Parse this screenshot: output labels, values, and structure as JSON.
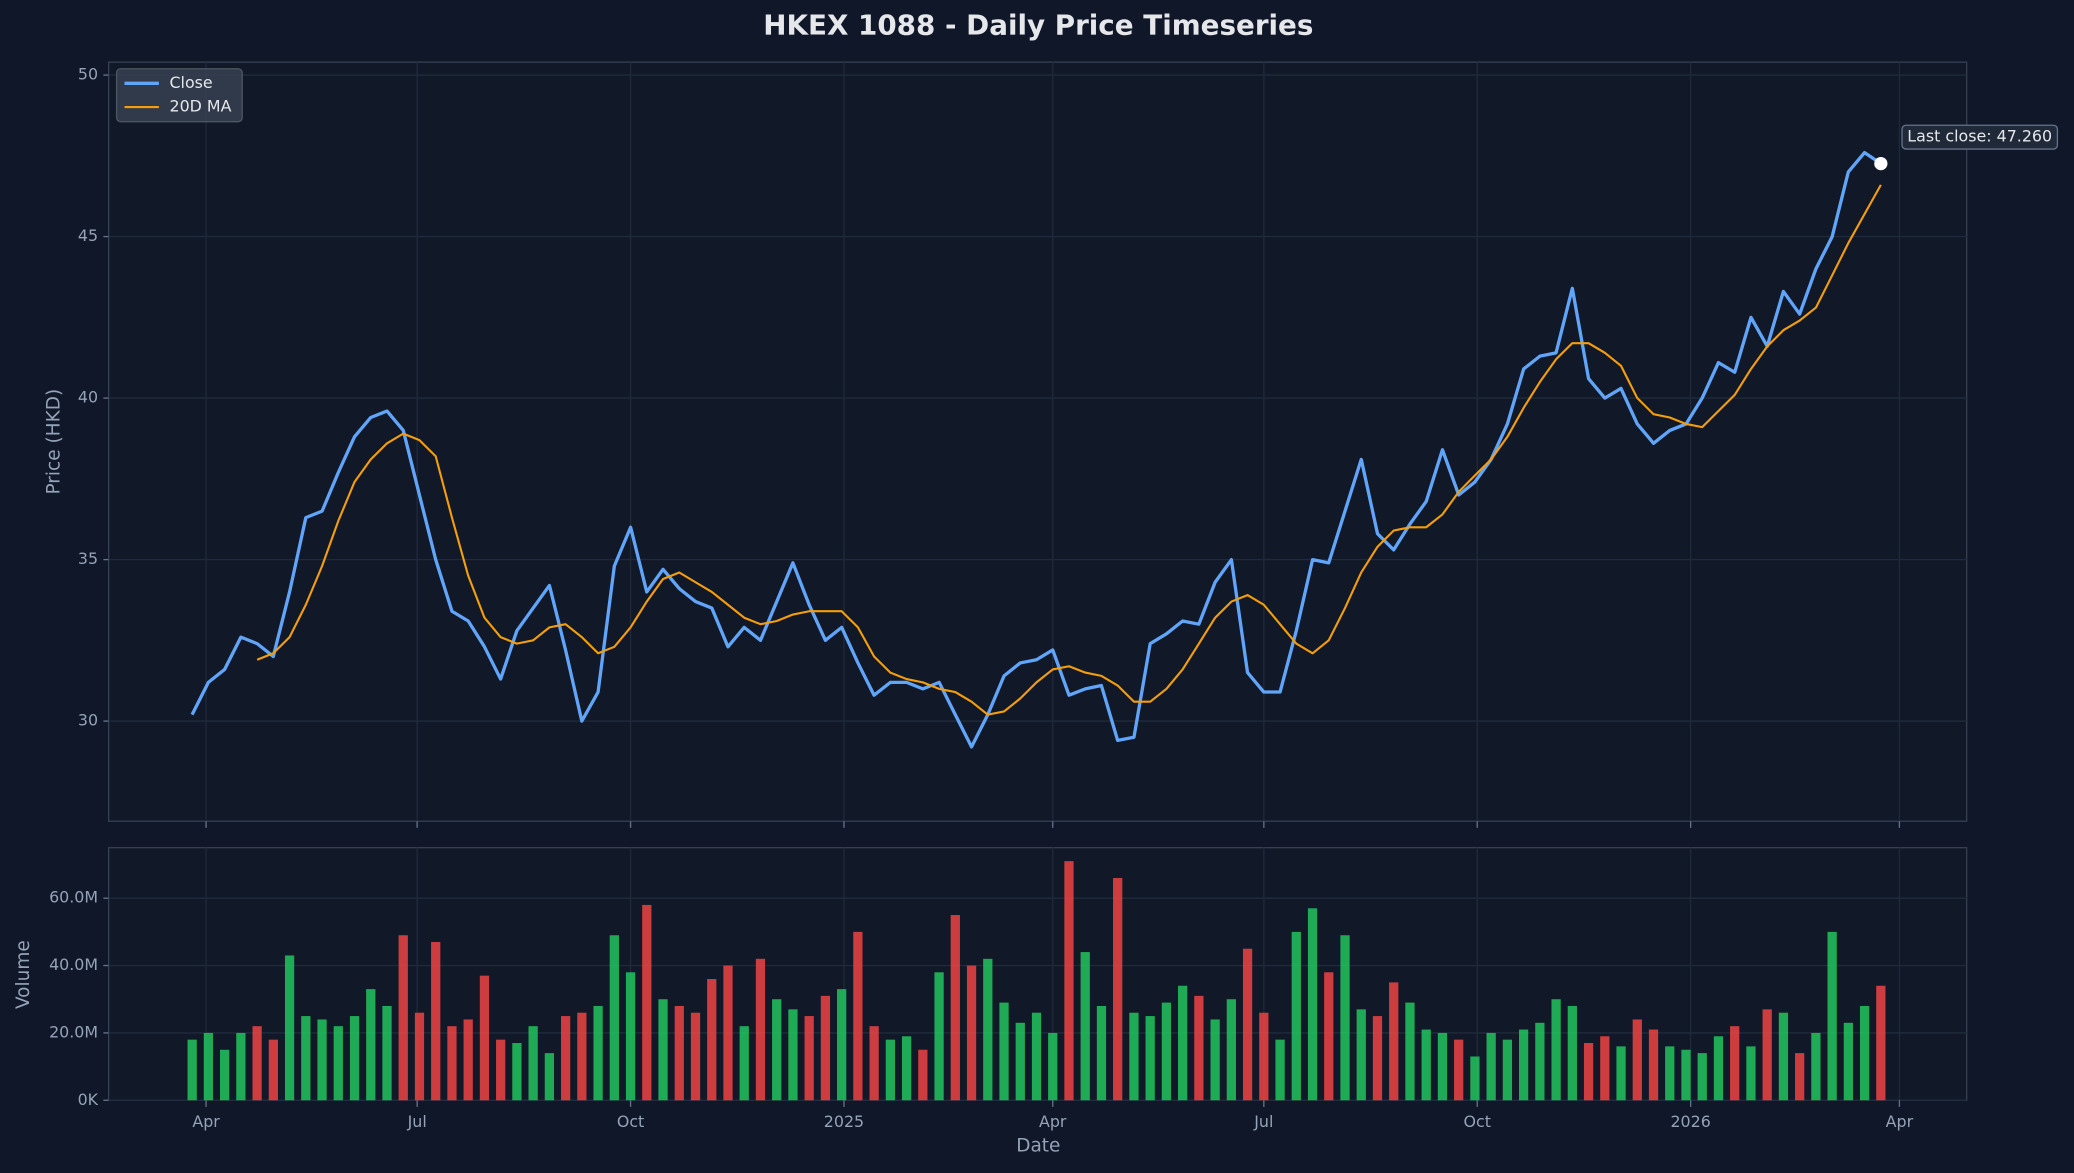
{
  "chart_data": [
    {
      "type": "line",
      "title": "HKEX 1088 - Daily Price Timeseries",
      "y_label": "Price (HKD)",
      "x": [
        "2024-03-26",
        "2024-04-02",
        "2024-04-09",
        "2024-04-16",
        "2024-04-23",
        "2024-04-30",
        "2024-05-07",
        "2024-05-14",
        "2024-05-21",
        "2024-05-28",
        "2024-06-04",
        "2024-06-11",
        "2024-06-18",
        "2024-06-25",
        "2024-07-02",
        "2024-07-09",
        "2024-07-16",
        "2024-07-23",
        "2024-07-30",
        "2024-08-06",
        "2024-08-13",
        "2024-08-20",
        "2024-08-27",
        "2024-09-03",
        "2024-09-10",
        "2024-09-17",
        "2024-09-24",
        "2024-10-01",
        "2024-10-08",
        "2024-10-15",
        "2024-10-22",
        "2024-10-29",
        "2024-11-05",
        "2024-11-12",
        "2024-11-19",
        "2024-11-26",
        "2024-12-03",
        "2024-12-10",
        "2024-12-17",
        "2024-12-24",
        "2024-12-31",
        "2025-01-07",
        "2025-01-14",
        "2025-01-21",
        "2025-01-28",
        "2025-02-04",
        "2025-02-11",
        "2025-02-18",
        "2025-02-25",
        "2025-03-04",
        "2025-03-11",
        "2025-03-18",
        "2025-03-25",
        "2025-04-01",
        "2025-04-08",
        "2025-04-15",
        "2025-04-22",
        "2025-04-29",
        "2025-05-06",
        "2025-05-13",
        "2025-05-20",
        "2025-05-27",
        "2025-06-03",
        "2025-06-10",
        "2025-06-17",
        "2025-06-24",
        "2025-07-01",
        "2025-07-08",
        "2025-07-15",
        "2025-07-22",
        "2025-07-29",
        "2025-08-05",
        "2025-08-12",
        "2025-08-19",
        "2025-08-26",
        "2025-09-02",
        "2025-09-09",
        "2025-09-16",
        "2025-09-23",
        "2025-09-30",
        "2025-10-07",
        "2025-10-14",
        "2025-10-21",
        "2025-10-28",
        "2025-11-04",
        "2025-11-11",
        "2025-11-18",
        "2025-11-25",
        "2025-12-02",
        "2025-12-09",
        "2025-12-16",
        "2025-12-23",
        "2025-12-30",
        "2026-01-06",
        "2026-01-13",
        "2026-01-20",
        "2026-01-27",
        "2026-02-03",
        "2026-02-10",
        "2026-02-17",
        "2026-02-24",
        "2026-03-03",
        "2026-03-10",
        "2026-03-17",
        "2026-03-24"
      ],
      "series": [
        {
          "name": "Close",
          "color": "#60a5fa",
          "values": [
            30.2,
            31.2,
            31.6,
            32.6,
            32.4,
            32.0,
            34.0,
            36.3,
            36.5,
            37.7,
            38.8,
            39.4,
            39.6,
            39.0,
            37.0,
            35.0,
            33.4,
            33.1,
            32.3,
            31.3,
            32.8,
            33.5,
            34.2,
            32.2,
            30.0,
            30.9,
            34.8,
            36.0,
            34.0,
            34.7,
            34.1,
            33.7,
            33.5,
            32.3,
            32.9,
            32.5,
            33.7,
            34.9,
            33.6,
            32.5,
            32.9,
            31.8,
            30.8,
            31.2,
            31.2,
            31.0,
            31.2,
            30.2,
            29.2,
            30.2,
            31.4,
            31.8,
            31.9,
            32.2,
            30.8,
            31.0,
            31.1,
            29.4,
            29.5,
            32.4,
            32.7,
            33.1,
            33.0,
            34.3,
            35.0,
            31.5,
            30.9,
            30.9,
            32.8,
            35.0,
            34.9,
            36.5,
            38.1,
            35.8,
            35.3,
            36.1,
            36.8,
            38.4,
            37.0,
            37.4,
            38.1,
            39.2,
            40.9,
            41.3,
            41.4,
            43.4,
            40.6,
            40.0,
            40.3,
            39.2,
            38.6,
            39.0,
            39.2,
            40.0,
            41.1,
            40.8,
            42.5,
            41.6,
            43.3,
            42.6,
            44.0,
            45.0,
            47.0,
            47.6,
            47.26
          ]
        },
        {
          "name": "20D MA",
          "color": "#f59e0b",
          "values": [
            null,
            null,
            null,
            null,
            31.9,
            32.1,
            32.6,
            33.6,
            34.8,
            36.2,
            37.4,
            38.1,
            38.6,
            38.9,
            38.7,
            38.2,
            36.3,
            34.5,
            33.2,
            32.6,
            32.4,
            32.5,
            32.9,
            33.0,
            32.6,
            32.1,
            32.3,
            32.9,
            33.7,
            34.4,
            34.6,
            34.3,
            34.0,
            33.6,
            33.2,
            33.0,
            33.1,
            33.3,
            33.4,
            33.4,
            33.4,
            32.9,
            32.0,
            31.5,
            31.3,
            31.2,
            31.0,
            30.9,
            30.6,
            30.2,
            30.3,
            30.7,
            31.2,
            31.6,
            31.7,
            31.5,
            31.4,
            31.1,
            30.6,
            30.6,
            31.0,
            31.6,
            32.4,
            33.2,
            33.7,
            33.9,
            33.6,
            33.0,
            32.4,
            32.1,
            32.5,
            33.5,
            34.6,
            35.4,
            35.9,
            36.0,
            36.0,
            36.4,
            37.1,
            37.6,
            38.1,
            38.8,
            39.7,
            40.5,
            41.2,
            41.7,
            41.7,
            41.4,
            41.0,
            40.0,
            39.5,
            39.4,
            39.2,
            39.1,
            39.6,
            40.1,
            40.9,
            41.6,
            42.1,
            42.4,
            42.8,
            43.8,
            44.8,
            45.7,
            46.6
          ]
        }
      ],
      "annotation": "Last close: 47.260",
      "xlim": [
        "2024-02-19",
        "2026-04-30"
      ],
      "ylim": [
        26.9,
        50.4
      ],
      "yticks": [
        30,
        35,
        40,
        45,
        50
      ],
      "grid": true,
      "legend": "upper left"
    },
    {
      "type": "bar",
      "y_label": "Volume",
      "x_label": "Date",
      "x": [
        "2024-03-26",
        "2024-04-02",
        "2024-04-09",
        "2024-04-16",
        "2024-04-23",
        "2024-04-30",
        "2024-05-07",
        "2024-05-14",
        "2024-05-21",
        "2024-05-28",
        "2024-06-04",
        "2024-06-11",
        "2024-06-18",
        "2024-06-25",
        "2024-07-02",
        "2024-07-09",
        "2024-07-16",
        "2024-07-23",
        "2024-07-30",
        "2024-08-06",
        "2024-08-13",
        "2024-08-20",
        "2024-08-27",
        "2024-09-03",
        "2024-09-10",
        "2024-09-17",
        "2024-09-24",
        "2024-10-01",
        "2024-10-08",
        "2024-10-15",
        "2024-10-22",
        "2024-10-29",
        "2024-11-05",
        "2024-11-12",
        "2024-11-19",
        "2024-11-26",
        "2024-12-03",
        "2024-12-10",
        "2024-12-17",
        "2024-12-24",
        "2024-12-31",
        "2025-01-07",
        "2025-01-14",
        "2025-01-21",
        "2025-01-28",
        "2025-02-04",
        "2025-02-11",
        "2025-02-18",
        "2025-02-25",
        "2025-03-04",
        "2025-03-11",
        "2025-03-18",
        "2025-03-25",
        "2025-04-01",
        "2025-04-08",
        "2025-04-15",
        "2025-04-22",
        "2025-04-29",
        "2025-05-06",
        "2025-05-13",
        "2025-05-20",
        "2025-05-27",
        "2025-06-03",
        "2025-06-10",
        "2025-06-17",
        "2025-06-24",
        "2025-07-01",
        "2025-07-08",
        "2025-07-15",
        "2025-07-22",
        "2025-07-29",
        "2025-08-05",
        "2025-08-12",
        "2025-08-19",
        "2025-08-26",
        "2025-09-02",
        "2025-09-09",
        "2025-09-16",
        "2025-09-23",
        "2025-09-30",
        "2025-10-07",
        "2025-10-14",
        "2025-10-21",
        "2025-10-28",
        "2025-11-04",
        "2025-11-11",
        "2025-11-18",
        "2025-11-25",
        "2025-12-02",
        "2025-12-09",
        "2025-12-16",
        "2025-12-23",
        "2025-12-30",
        "2026-01-06",
        "2026-01-13",
        "2026-01-20",
        "2026-01-27",
        "2026-02-03",
        "2026-02-10",
        "2026-02-17",
        "2026-02-24",
        "2026-03-03",
        "2026-03-10",
        "2026-03-17",
        "2026-03-24"
      ],
      "values": [
        18000000,
        20000000,
        15000000,
        20000000,
        22000000,
        18000000,
        43000000,
        25000000,
        24000000,
        22000000,
        25000000,
        33000000,
        28000000,
        49000000,
        26000000,
        47000000,
        22000000,
        24000000,
        37000000,
        18000000,
        17000000,
        22000000,
        14000000,
        25000000,
        26000000,
        28000000,
        49000000,
        38000000,
        58000000,
        30000000,
        28000000,
        26000000,
        36000000,
        40000000,
        22000000,
        42000000,
        30000000,
        27000000,
        25000000,
        31000000,
        33000000,
        50000000,
        22000000,
        18000000,
        19000000,
        15000000,
        38000000,
        55000000,
        40000000,
        42000000,
        29000000,
        23000000,
        26000000,
        20000000,
        71000000,
        44000000,
        28000000,
        66000000,
        26000000,
        25000000,
        29000000,
        34000000,
        31000000,
        24000000,
        30000000,
        45000000,
        26000000,
        18000000,
        50000000,
        57000000,
        38000000,
        49000000,
        27000000,
        25000000,
        35000000,
        29000000,
        21000000,
        20000000,
        18000000,
        13000000,
        20000000,
        18000000,
        21000000,
        23000000,
        30000000,
        28000000,
        17000000,
        19000000,
        16000000,
        24000000,
        21000000,
        16000000,
        15000000,
        14000000,
        19000000,
        22000000,
        16000000,
        27000000,
        26000000,
        14000000,
        20000000,
        50000000,
        23000000,
        28000000,
        34000000
      ],
      "up_color": "#22c55e",
      "down_color": "#ef4444",
      "xlim": [
        "2024-02-19",
        "2026-04-30"
      ],
      "xticks": [
        {
          "value": "2024-04-01",
          "label": "Apr"
        },
        {
          "value": "2024-07-01",
          "label": "Jul"
        },
        {
          "value": "2024-10-01",
          "label": "Oct"
        },
        {
          "value": "2025-01-01",
          "label": "2025"
        },
        {
          "value": "2025-04-01",
          "label": "Apr"
        },
        {
          "value": "2025-07-01",
          "label": "Jul"
        },
        {
          "value": "2025-10-01",
          "label": "Oct"
        },
        {
          "value": "2026-01-01",
          "label": "2026"
        },
        {
          "value": "2026-04-01",
          "label": "Apr"
        }
      ],
      "ylim": [
        0,
        75000000
      ],
      "yticks": [
        {
          "value": 0,
          "label": "0K"
        },
        {
          "value": 20000000,
          "label": "20.0M"
        },
        {
          "value": 40000000,
          "label": "40.0M"
        },
        {
          "value": 60000000,
          "label": "60.0M"
        }
      ],
      "grid": true
    }
  ]
}
